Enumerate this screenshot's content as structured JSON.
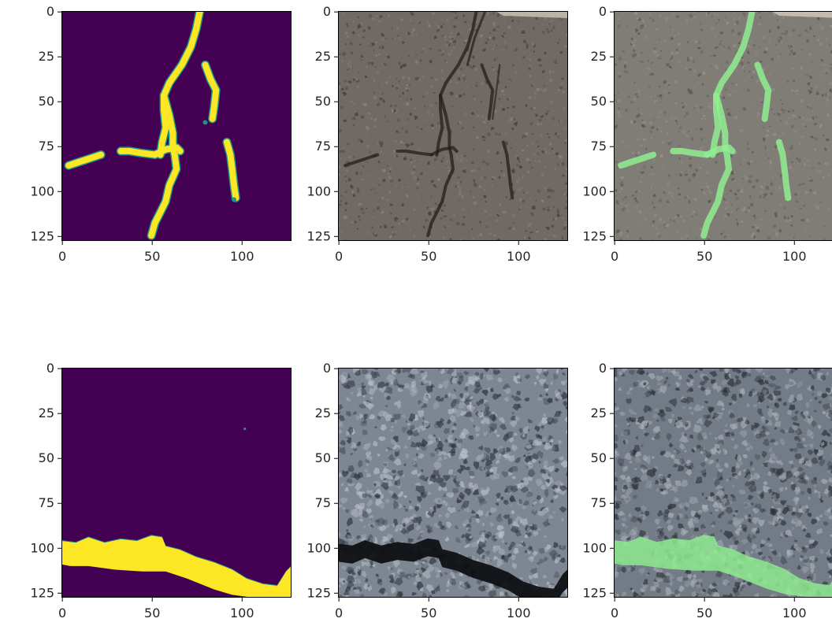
{
  "figure": {
    "background": "#ffffff",
    "mask_colors": {
      "background": "#440154",
      "crack": "#fde725",
      "edge": "#21918c"
    },
    "overlay_color": "#90ee90",
    "asphalt_colors": {
      "top_base": "#6f6a63",
      "top_dark": "#3b3733",
      "top_light": "#8d877e",
      "crack": "#241d18",
      "bottom_base": "#7d8692",
      "bottom_dark": "#2c323a",
      "bottom_light": "#b9c0c8",
      "crack_dark": "#0b0d10"
    }
  },
  "chart_data": [
    {
      "id": "top-mask",
      "type": "heatmap",
      "content": "predicted crack mask",
      "colormap": "viridis",
      "xlim": [
        0,
        128
      ],
      "ylim": [
        128,
        0
      ],
      "xticks": [
        0,
        50,
        100
      ],
      "yticks": [
        0,
        25,
        50,
        75,
        100,
        125
      ],
      "xtick_labels": [
        "0",
        "50",
        "100"
      ],
      "ytick_labels": [
        "0",
        "25",
        "50",
        "75",
        "100",
        "125"
      ],
      "cracks": [
        [
          [
            77,
            0
          ],
          [
            75,
            10
          ],
          [
            72,
            20
          ],
          [
            67,
            30
          ],
          [
            60,
            40
          ],
          [
            57,
            47
          ],
          [
            57,
            55
          ],
          [
            58,
            65
          ],
          [
            56,
            73
          ],
          [
            55,
            80
          ]
        ],
        [
          [
            57,
            47
          ],
          [
            60,
            58
          ],
          [
            62,
            68
          ],
          [
            62,
            76
          ],
          [
            63,
            80
          ],
          [
            64,
            88
          ],
          [
            60,
            97
          ],
          [
            58,
            106
          ],
          [
            55,
            112
          ],
          [
            52,
            118
          ],
          [
            50,
            125
          ]
        ],
        [
          [
            52,
            80
          ],
          [
            44,
            79
          ],
          [
            38,
            78
          ],
          [
            33,
            78
          ]
        ],
        [
          [
            52,
            80
          ],
          [
            58,
            77
          ],
          [
            64,
            76
          ],
          [
            66,
            78
          ]
        ],
        [
          [
            4,
            86
          ],
          [
            10,
            84
          ],
          [
            16,
            82
          ],
          [
            22,
            80
          ]
        ],
        [
          [
            80,
            30
          ],
          [
            83,
            38
          ],
          [
            86,
            44
          ],
          [
            85,
            53
          ],
          [
            84,
            60
          ]
        ],
        [
          [
            92,
            73
          ],
          [
            94,
            80
          ],
          [
            95,
            88
          ],
          [
            96,
            97
          ],
          [
            97,
            104
          ]
        ]
      ],
      "edge_points": [
        [
          80,
          62
        ],
        [
          96,
          105
        ]
      ]
    },
    {
      "id": "top-photo",
      "type": "image",
      "content": "asphalt surface photo",
      "xlim": [
        0,
        128
      ],
      "ylim": [
        128,
        0
      ],
      "xticks": [
        0,
        50,
        100
      ],
      "yticks": [
        0,
        25,
        50,
        75,
        100,
        125
      ],
      "xtick_labels": [
        "0",
        "50",
        "100"
      ],
      "ytick_labels": [
        "0",
        "25",
        "50",
        "75",
        "100",
        "125"
      ]
    },
    {
      "id": "top-overlay",
      "type": "image",
      "content": "photo with green mask overlay",
      "xlim": [
        0,
        128
      ],
      "ylim": [
        128,
        0
      ],
      "xticks": [
        0,
        50,
        100
      ],
      "yticks": [
        0,
        25,
        50,
        75,
        100,
        125
      ],
      "xtick_labels": [
        "0",
        "50",
        "100"
      ],
      "ytick_labels": [
        "0",
        "25",
        "50",
        "75",
        "100",
        "125"
      ]
    },
    {
      "id": "bottom-mask",
      "type": "heatmap",
      "content": "predicted crack mask",
      "colormap": "viridis",
      "xlim": [
        0,
        128
      ],
      "ylim": [
        128,
        0
      ],
      "xticks": [
        0,
        50,
        100
      ],
      "yticks": [
        0,
        25,
        50,
        75,
        100,
        125
      ],
      "xtick_labels": [
        "0",
        "50",
        "100"
      ],
      "ytick_labels": [
        "0",
        "25",
        "50",
        "75",
        "100",
        "125"
      ],
      "crack_band_top": [
        [
          0,
          96
        ],
        [
          8,
          97
        ],
        [
          15,
          94
        ],
        [
          24,
          97
        ],
        [
          33,
          95
        ],
        [
          42,
          96
        ],
        [
          50,
          93
        ],
        [
          56,
          94
        ],
        [
          58,
          99
        ],
        [
          66,
          101
        ],
        [
          75,
          105
        ],
        [
          85,
          108
        ],
        [
          95,
          112
        ],
        [
          103,
          117
        ],
        [
          112,
          120
        ],
        [
          120,
          121
        ],
        [
          125,
          113
        ],
        [
          128,
          110
        ]
      ],
      "crack_band_bottom": [
        [
          128,
          128
        ],
        [
          110,
          128
        ],
        [
          95,
          126
        ],
        [
          85,
          123
        ],
        [
          70,
          117
        ],
        [
          58,
          113
        ],
        [
          45,
          113
        ],
        [
          30,
          112
        ],
        [
          15,
          110
        ],
        [
          5,
          110
        ],
        [
          0,
          109
        ]
      ],
      "speck": [
        102,
        34
      ]
    },
    {
      "id": "bottom-photo",
      "type": "image",
      "content": "asphalt surface photo",
      "xlim": [
        0,
        128
      ],
      "ylim": [
        128,
        0
      ],
      "xticks": [
        0,
        50,
        100
      ],
      "yticks": [
        0,
        25,
        50,
        75,
        100,
        125
      ],
      "xtick_labels": [
        "0",
        "50",
        "100"
      ],
      "ytick_labels": [
        "0",
        "25",
        "50",
        "75",
        "100",
        "125"
      ]
    },
    {
      "id": "bottom-overlay",
      "type": "image",
      "content": "photo with green mask overlay",
      "xlim": [
        0,
        128
      ],
      "ylim": [
        128,
        0
      ],
      "xticks": [
        0,
        50,
        100
      ],
      "yticks": [
        0,
        25,
        50,
        75,
        100,
        125
      ],
      "xtick_labels": [
        "0",
        "50",
        "100"
      ],
      "ytick_labels": [
        "0",
        "25",
        "50",
        "75",
        "100",
        "125"
      ]
    }
  ]
}
